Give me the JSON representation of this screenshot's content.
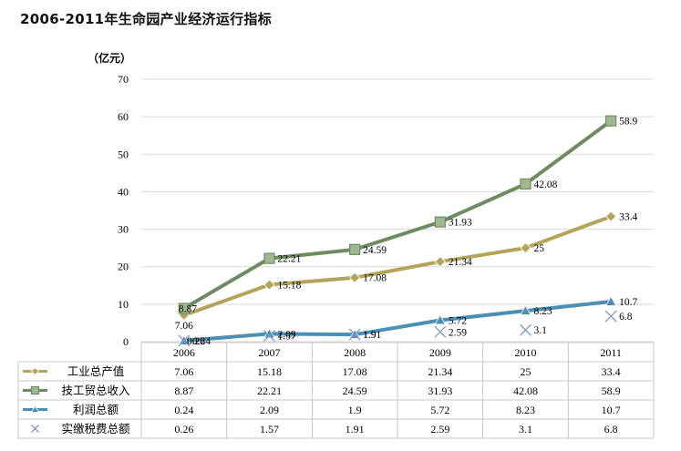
{
  "title": "2006-2011年生命园产业经济运行指标",
  "chart_data": {
    "type": "line",
    "title": "2006-2011年生命园产业经济运行指标",
    "ylabel": "（亿元）",
    "xlabel": "",
    "categories": [
      "2006",
      "2007",
      "2008",
      "2009",
      "2010",
      "2011"
    ],
    "ylim": [
      0,
      70
    ],
    "yticks": [
      "0",
      "10",
      "20",
      "30",
      "40",
      "50",
      "60",
      "70"
    ],
    "grid": true,
    "legend": "table-below",
    "series": [
      {
        "name": "工业总产值",
        "values": [
          7.06,
          15.18,
          17.08,
          21.34,
          25,
          33.4
        ],
        "labels": [
          "7.06",
          "15.18",
          "17.08",
          "21.34",
          "25",
          "33.4"
        ],
        "color": "#b4a45a",
        "marker": "diamond",
        "line": true
      },
      {
        "name": "技工贸总收入",
        "values": [
          8.87,
          22.21,
          24.59,
          31.93,
          42.08,
          58.9
        ],
        "labels": [
          "8.87",
          "22.21",
          "24.59",
          "31.93",
          "42.08",
          "58.9"
        ],
        "color": "#6e8c62",
        "marker": "square",
        "line": true
      },
      {
        "name": "利润总额",
        "values": [
          0.24,
          2.09,
          1.9,
          5.72,
          8.23,
          10.7
        ],
        "labels": [
          "0.24",
          "2.09",
          "1.9",
          "5.72",
          "8.23",
          "10.7"
        ],
        "color": "#4c8fb4",
        "marker": "triangle",
        "line": true
      },
      {
        "name": "实缴税费总额",
        "values": [
          0.26,
          1.57,
          1.91,
          2.59,
          3.1,
          6.8
        ],
        "labels": [
          "0.26",
          "1.57",
          "1.91",
          "2.59",
          "3.1",
          "6.8"
        ],
        "color": "#7f99c4",
        "marker": "x",
        "line": false
      }
    ]
  }
}
